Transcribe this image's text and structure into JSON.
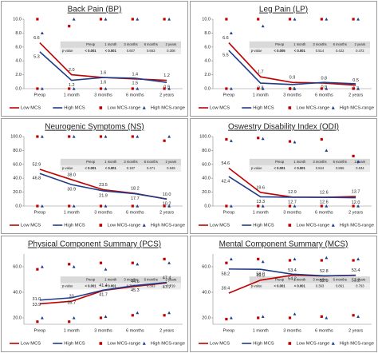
{
  "chart_data": [
    {
      "type": "line",
      "title": "Back Pain (BP)",
      "categories": [
        "Preop",
        "1 month",
        "3 months",
        "6 months",
        "2 years"
      ],
      "ylim": [
        0,
        10
      ],
      "yticks": [
        {
          "value": 0,
          "label": "0.0"
        },
        {
          "value": 2,
          "label": "2.0"
        },
        {
          "value": 4,
          "label": "4.0"
        },
        {
          "value": 6,
          "label": "6.0"
        },
        {
          "value": 8,
          "label": "8.0"
        },
        {
          "value": 10,
          "label": "10.0"
        }
      ],
      "series": [
        {
          "name": "Low MCS",
          "color": "#c00000",
          "values": [
            6.6,
            2,
            1.6,
            1.4,
            1.2
          ],
          "value_labels": [
            "6.6",
            "2.0",
            "1.6",
            "1.4",
            "1.2"
          ]
        },
        {
          "name": "High MCS",
          "color": "#1f3c88",
          "values": [
            5.3,
            1.2,
            1.6,
            1.5,
            0.9
          ]
        },
        {
          "name": "Low MCS-range",
          "color": "#c00000",
          "marker": "square",
          "high": [
            10,
            9,
            10,
            10,
            10
          ],
          "low": [
            0,
            0,
            0,
            0,
            0
          ]
        },
        {
          "name": "High MCS-range",
          "color": "#1f3c88",
          "marker": "triangle",
          "high": [
            8,
            10,
            10,
            10,
            10
          ],
          "low": [
            0,
            0,
            0,
            0,
            0
          ]
        }
      ],
      "table": {
        "row_label": "p-value",
        "values": [
          "< 0.001",
          "< 0.001",
          "0.607",
          "0.663",
          "0.308"
        ]
      }
    },
    {
      "type": "line",
      "title": "Leg Pain (LP)",
      "categories": [
        "Preop",
        "1 month",
        "3 months",
        "6 months",
        "2 years"
      ],
      "ylim": [
        0,
        10
      ],
      "yticks": [
        {
          "value": 0,
          "label": "0.0"
        },
        {
          "value": 2,
          "label": "2.0"
        },
        {
          "value": 4,
          "label": "4.0"
        },
        {
          "value": 6,
          "label": "6.0"
        },
        {
          "value": 8,
          "label": "8.0"
        },
        {
          "value": 10,
          "label": "10.0"
        }
      ],
      "series": [
        {
          "name": "Low MCS",
          "color": "#c00000",
          "values": [
            6.6,
            1.7,
            0.9,
            0.8,
            0.5
          ]
        },
        {
          "name": "High MCS",
          "color": "#1f3c88",
          "values": [
            5.5,
            0.8,
            0.6,
            0.9,
            0.7
          ]
        },
        {
          "name": "Low MCS-range",
          "color": "#c00000",
          "marker": "square",
          "high": [
            10,
            10,
            10,
            10,
            10
          ],
          "low": [
            0,
            0,
            0,
            0,
            0
          ]
        },
        {
          "name": "High MCS-range",
          "color": "#1f3c88",
          "marker": "triangle",
          "high": [
            8,
            9,
            10,
            10,
            10
          ],
          "low": [
            0,
            0,
            0,
            0,
            0
          ]
        }
      ],
      "table": {
        "row_label": "p-value",
        "values": [
          "< 0.005",
          "< 0.001",
          "0.514",
          "0.422",
          "0.472"
        ]
      }
    },
    {
      "type": "line",
      "title": "Neurogenic Symptoms (NS)",
      "categories": [
        "Preop",
        "1 month",
        "3 months",
        "6 months",
        "2 years"
      ],
      "ylim": [
        0,
        100
      ],
      "yticks": [
        {
          "value": 0,
          "label": "0.0"
        },
        {
          "value": 20,
          "label": "20.0"
        },
        {
          "value": 40,
          "label": "40.0"
        },
        {
          "value": 60,
          "label": "60.0"
        },
        {
          "value": 80,
          "label": "80.0"
        },
        {
          "value": 100,
          "label": "100.0"
        }
      ],
      "series": [
        {
          "name": "Low MCS",
          "color": "#c00000",
          "values": [
            52.9,
            38,
            23.5,
            18.2,
            10
          ],
          "value_labels": [
            "52.9",
            "38.0",
            "23.5",
            "18.2",
            "10.0"
          ]
        },
        {
          "name": "High MCS",
          "color": "#1f3c88",
          "values": [
            46.8,
            30.9,
            21.9,
            17.7,
            10.2
          ]
        },
        {
          "name": "Low MCS-range",
          "color": "#c00000",
          "marker": "square",
          "high": [
            100,
            100,
            100,
            100,
            94
          ],
          "low": [
            0,
            0,
            0,
            0,
            0
          ]
        },
        {
          "name": "High MCS-range",
          "color": "#1f3c88",
          "marker": "triangle",
          "high": [
            100,
            100,
            100,
            100,
            100
          ],
          "low": [
            0,
            0,
            0,
            0,
            0
          ]
        }
      ],
      "table": {
        "row_label": "p-value",
        "values": [
          "< 0.001",
          "< 0.001",
          "0.187",
          "0.471",
          "0.849"
        ]
      }
    },
    {
      "type": "line",
      "title": "Oswestry Disability Index (ODI)",
      "categories": [
        "Preop",
        "1 month",
        "3 months",
        "6 months",
        "2 years"
      ],
      "ylim": [
        0,
        100
      ],
      "yticks": [
        {
          "value": 0,
          "label": "0.0"
        },
        {
          "value": 20,
          "label": "20.0"
        },
        {
          "value": 40,
          "label": "40.0"
        },
        {
          "value": 60,
          "label": "60.0"
        },
        {
          "value": 80,
          "label": "80.0"
        },
        {
          "value": 100,
          "label": "100.0"
        }
      ],
      "series": [
        {
          "name": "Low MCS",
          "color": "#c00000",
          "values": [
            54.6,
            19.6,
            12.9,
            12.6,
            13.7
          ]
        },
        {
          "name": "High MCS",
          "color": "#1f3c88",
          "values": [
            42.4,
            13.3,
            12.7,
            12.6,
            12
          ],
          "value_labels": [
            "42.4",
            "13.3",
            "12.7",
            "12.6",
            "12.0"
          ]
        },
        {
          "name": "Low MCS-range",
          "color": "#c00000",
          "marker": "square",
          "high": [
            96,
            98,
            93,
            96,
            72
          ],
          "low": [
            0,
            0,
            0,
            0,
            0
          ]
        },
        {
          "name": "High MCS-range",
          "color": "#1f3c88",
          "marker": "triangle",
          "high": [
            94,
            97,
            92,
            80,
            64
          ],
          "low": [
            0,
            0,
            0,
            0,
            0
          ]
        }
      ],
      "table": {
        "row_label": "p-value",
        "values": [
          "< 0.001",
          "< 0.001",
          "0.844",
          "0.886",
          "0.634"
        ]
      }
    },
    {
      "type": "line",
      "title": "Physical Component Summary (PCS)",
      "categories": [
        "Preop",
        "1 month",
        "3 months",
        "6 months",
        "2 years"
      ],
      "ylim": [
        15,
        70
      ],
      "yticks": [
        {
          "value": 20,
          "label": "20.0"
        },
        {
          "value": 40,
          "label": "40.0"
        },
        {
          "value": 60,
          "label": "60.0"
        }
      ],
      "series": [
        {
          "name": "Low MCS",
          "color": "#c00000",
          "values": [
            31,
            33,
            41.4,
            44.6,
            47.4
          ],
          "value_labels": [
            "31.0",
            "33",
            "41.4",
            "44.6",
            "47.4"
          ]
        },
        {
          "name": "High MCS",
          "color": "#1f3c88",
          "values": [
            33.9,
            35.7,
            41.7,
            45.3,
            47.7
          ]
        },
        {
          "name": "Low MCS-range",
          "color": "#c00000",
          "marker": "square",
          "high": [
            58,
            62,
            63,
            63,
            66
          ],
          "low": [
            17,
            17,
            20,
            22,
            22
          ]
        },
        {
          "name": "High MCS-range",
          "color": "#1f3c88",
          "marker": "triangle",
          "high": [
            60,
            60,
            58,
            62,
            63
          ],
          "low": [
            20,
            20,
            21,
            24,
            24
          ]
        }
      ],
      "table": {
        "row_label": "p-value",
        "values": [
          "< 0.001",
          "< 0.001",
          "0.716",
          "0.383",
          "0.719"
        ]
      }
    },
    {
      "type": "line",
      "title": "Mental Component Summary (MCS)",
      "categories": [
        "Preop",
        "1 month",
        "3 months",
        "6 months",
        "2 years"
      ],
      "ylim": [
        15,
        70
      ],
      "yticks": [
        {
          "value": 20,
          "label": "20.0"
        },
        {
          "value": 40,
          "label": "40.0"
        },
        {
          "value": 60,
          "label": "60.0"
        }
      ],
      "series": [
        {
          "name": "Low MCS",
          "color": "#c00000",
          "values": [
            39.4,
            49.5,
            53.4,
            52.8,
            53.4
          ]
        },
        {
          "name": "High MCS",
          "color": "#1f3c88",
          "values": [
            58.2,
            58,
            54.2,
            52.9,
            53.2
          ],
          "value_labels": [
            "58.2",
            "58.0",
            "54.2",
            "52.9",
            "53.2"
          ]
        },
        {
          "name": "Low MCS-range",
          "color": "#c00000",
          "marker": "square",
          "high": [
            63,
            66,
            65,
            65,
            65
          ],
          "low": [
            19,
            20,
            20,
            21,
            22
          ]
        },
        {
          "name": "High MCS-range",
          "color": "#1f3c88",
          "marker": "triangle",
          "high": [
            66,
            64,
            66,
            67,
            66
          ],
          "low": [
            20,
            21,
            23,
            20,
            21
          ]
        }
      ],
      "table": {
        "row_label": "p-value",
        "values": [
          "< 0.001",
          "< 0.001",
          "0.393",
          "0.861",
          "0.793"
        ]
      }
    }
  ]
}
